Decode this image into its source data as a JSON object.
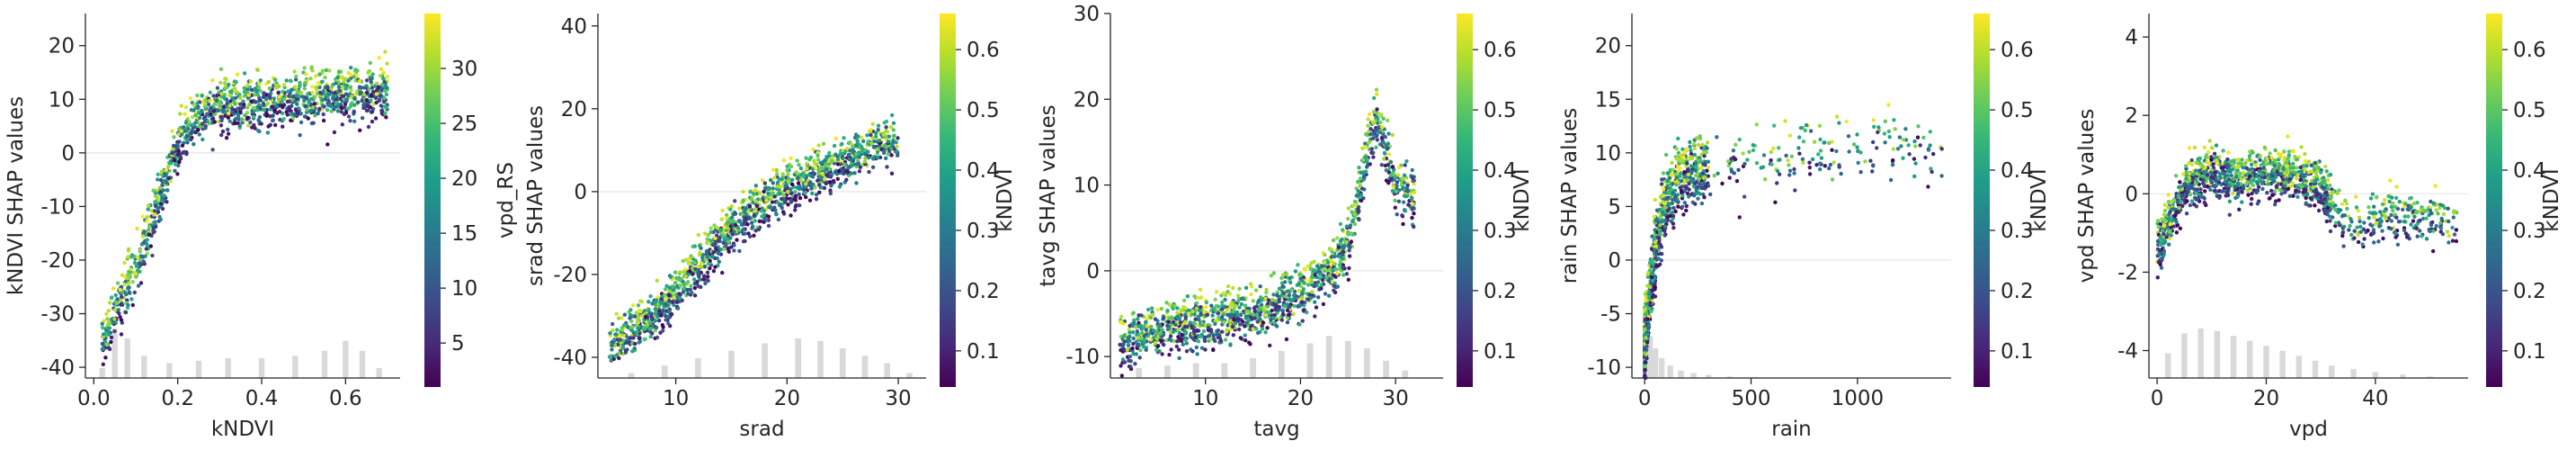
{
  "figure": {
    "background": "#ffffff",
    "histogram_color": "#d9d9d9",
    "colormap": "viridis"
  },
  "chart_data": [
    {
      "type": "scatter",
      "feature": "kNDVI",
      "xlabel": "kNDVI",
      "ylabel": "kNDVI SHAP values",
      "xlim": [
        -0.02,
        0.73
      ],
      "ylim": [
        -42,
        26
      ],
      "xticks": [
        0.0,
        0.2,
        0.4,
        0.6
      ],
      "xtick_labels": [
        "0.0",
        "0.2",
        "0.4",
        "0.6"
      ],
      "yticks": [
        -40,
        -30,
        -20,
        -10,
        0,
        10,
        20
      ],
      "ytick_labels": [
        "-40",
        "-30",
        "-20",
        "-10",
        "0",
        "10",
        "20"
      ],
      "color_feature": "vpd_RS",
      "colorbar": {
        "label": "vpd_RS",
        "range": [
          1,
          35
        ],
        "ticks": [
          5,
          10,
          15,
          20,
          25,
          30
        ],
        "tick_labels": [
          "5",
          "10",
          "15",
          "20",
          "25",
          "30"
        ]
      },
      "histogram_x": [
        0.02,
        0.05,
        0.08,
        0.12,
        0.18,
        0.25,
        0.32,
        0.4,
        0.48,
        0.55,
        0.6,
        0.64,
        0.68
      ],
      "histogram_rel": [
        0.2,
        1.0,
        0.8,
        0.45,
        0.3,
        0.35,
        0.4,
        0.4,
        0.45,
        0.55,
        0.75,
        0.55,
        0.2
      ],
      "trend": [
        [
          0.02,
          -36
        ],
        [
          0.05,
          -30
        ],
        [
          0.1,
          -22
        ],
        [
          0.15,
          -10
        ],
        [
          0.2,
          2
        ],
        [
          0.25,
          7
        ],
        [
          0.3,
          9
        ],
        [
          0.4,
          9.5
        ],
        [
          0.5,
          10
        ],
        [
          0.6,
          10.5
        ],
        [
          0.7,
          12
        ]
      ],
      "spread": 4.5,
      "n_points": 1300
    },
    {
      "type": "scatter",
      "feature": "srad",
      "xlabel": "srad",
      "ylabel": "srad SHAP values",
      "xlim": [
        3,
        32.5
      ],
      "ylim": [
        -45,
        43
      ],
      "xticks": [
        10,
        20,
        30
      ],
      "xtick_labels": [
        "10",
        "20",
        "30"
      ],
      "yticks": [
        -40,
        -20,
        0,
        20,
        40
      ],
      "ytick_labels": [
        "-40",
        "-20",
        "0",
        "20",
        "40"
      ],
      "color_feature": "kNDVI",
      "colorbar": {
        "label": "kNDVI",
        "range": [
          0.04,
          0.66
        ],
        "ticks": [
          0.1,
          0.2,
          0.3,
          0.4,
          0.5,
          0.6
        ],
        "tick_labels": [
          "0.1",
          "0.2",
          "0.3",
          "0.4",
          "0.5",
          "0.6"
        ]
      },
      "histogram_x": [
        6,
        9,
        12,
        15,
        18,
        21,
        23,
        25,
        27,
        29,
        31
      ],
      "histogram_rel": [
        0.1,
        0.25,
        0.4,
        0.55,
        0.7,
        0.8,
        0.75,
        0.6,
        0.45,
        0.3,
        0.1
      ],
      "trend": [
        [
          4,
          -38
        ],
        [
          8,
          -30
        ],
        [
          12,
          -18
        ],
        [
          16,
          -6
        ],
        [
          20,
          1
        ],
        [
          24,
          6
        ],
        [
          28,
          11
        ],
        [
          30,
          12
        ]
      ],
      "spread": 5,
      "n_points": 1300
    },
    {
      "type": "scatter",
      "feature": "tavg",
      "xlabel": "tavg",
      "ylabel": "tavg SHAP values",
      "xlim": [
        0,
        35
      ],
      "ylim": [
        -12.5,
        30
      ],
      "xticks": [
        10,
        20,
        30
      ],
      "xtick_labels": [
        "10",
        "20",
        "30"
      ],
      "yticks": [
        -10,
        0,
        10,
        20,
        30
      ],
      "ytick_labels": [
        "-10",
        "0",
        "10",
        "20",
        "30"
      ],
      "color_feature": "kNDVI",
      "colorbar": {
        "label": "kNDVI",
        "range": [
          0.04,
          0.66
        ],
        "ticks": [
          0.1,
          0.2,
          0.3,
          0.4,
          0.5,
          0.6
        ],
        "tick_labels": [
          "0.1",
          "0.2",
          "0.3",
          "0.4",
          "0.5",
          "0.6"
        ]
      },
      "histogram_x": [
        3,
        6,
        9,
        12,
        15,
        18,
        21,
        23,
        25,
        27,
        29,
        31
      ],
      "histogram_rel": [
        0.2,
        0.25,
        0.3,
        0.3,
        0.4,
        0.55,
        0.7,
        0.85,
        0.75,
        0.6,
        0.35,
        0.15
      ],
      "trend": [
        [
          1,
          -8
        ],
        [
          6,
          -7
        ],
        [
          10,
          -6
        ],
        [
          15,
          -5
        ],
        [
          20,
          -3
        ],
        [
          23,
          0
        ],
        [
          25,
          3
        ],
        [
          26,
          8
        ],
        [
          27,
          14
        ],
        [
          28,
          18
        ],
        [
          30,
          10
        ],
        [
          32,
          9
        ]
      ],
      "spread": 2.8,
      "n_points": 1300
    },
    {
      "type": "scatter",
      "feature": "rain",
      "xlabel": "rain",
      "ylabel": "rain SHAP values",
      "xlim": [
        -60,
        1440
      ],
      "ylim": [
        -11,
        23
      ],
      "xticks": [
        0,
        500,
        1000
      ],
      "xtick_labels": [
        "0",
        "500",
        "1000"
      ],
      "yticks": [
        -10,
        -5,
        0,
        5,
        10,
        15,
        20
      ],
      "ytick_labels": [
        "-10",
        "-5",
        "0",
        "5",
        "10",
        "15",
        "20"
      ],
      "color_feature": "kNDVI",
      "colorbar": {
        "label": "kNDVI",
        "range": [
          0.04,
          0.66
        ],
        "ticks": [
          0.1,
          0.2,
          0.3,
          0.4,
          0.5,
          0.6
        ],
        "tick_labels": [
          "0.1",
          "0.2",
          "0.3",
          "0.4",
          "0.5",
          "0.6"
        ]
      },
      "histogram_x": [
        5,
        25,
        50,
        80,
        120,
        170,
        230,
        300,
        400,
        520
      ],
      "histogram_rel": [
        1.0,
        0.85,
        0.6,
        0.4,
        0.25,
        0.15,
        0.1,
        0.06,
        0.03,
        0.02
      ],
      "trend": [
        [
          0,
          -8
        ],
        [
          20,
          -4
        ],
        [
          50,
          1
        ],
        [
          100,
          6
        ],
        [
          200,
          8
        ],
        [
          400,
          9
        ],
        [
          700,
          10
        ],
        [
          1000,
          10.5
        ],
        [
          1400,
          10.5
        ]
      ],
      "spread": 2.8,
      "n_points": 1000
    },
    {
      "type": "scatter",
      "feature": "vpd",
      "xlabel": "vpd",
      "ylabel": "vpd SHAP values",
      "xlim": [
        -1.5,
        57
      ],
      "ylim": [
        -4.7,
        4.6
      ],
      "xticks": [
        0,
        20,
        40
      ],
      "xtick_labels": [
        "0",
        "20",
        "40"
      ],
      "yticks": [
        -4,
        -2,
        0,
        2,
        4
      ],
      "ytick_labels": [
        "-4",
        "-2",
        "0",
        "2",
        "4"
      ],
      "color_feature": "kNDVI",
      "colorbar": {
        "label": "kNDVI",
        "range": [
          0.04,
          0.66
        ],
        "ticks": [
          0.1,
          0.2,
          0.3,
          0.4,
          0.5,
          0.6
        ],
        "tick_labels": [
          "0.1",
          "0.2",
          "0.3",
          "0.4",
          "0.5",
          "0.6"
        ]
      },
      "histogram_x": [
        2,
        5,
        8,
        11,
        14,
        17,
        20,
        23,
        26,
        29,
        32,
        36,
        40,
        45,
        50
      ],
      "histogram_rel": [
        0.5,
        0.9,
        1.0,
        0.95,
        0.85,
        0.75,
        0.65,
        0.55,
        0.45,
        0.35,
        0.25,
        0.18,
        0.12,
        0.07,
        0.03
      ],
      "trend": [
        [
          0,
          -1.5
        ],
        [
          2,
          -0.8
        ],
        [
          5,
          0.2
        ],
        [
          10,
          0.6
        ],
        [
          15,
          0.3
        ],
        [
          20,
          0.6
        ],
        [
          25,
          0.5
        ],
        [
          30,
          0.2
        ],
        [
          33,
          -0.5
        ],
        [
          36,
          -1.0
        ],
        [
          40,
          -0.6
        ],
        [
          48,
          -0.6
        ],
        [
          55,
          -0.8
        ]
      ],
      "spread": 0.55,
      "n_points": 1300
    }
  ]
}
